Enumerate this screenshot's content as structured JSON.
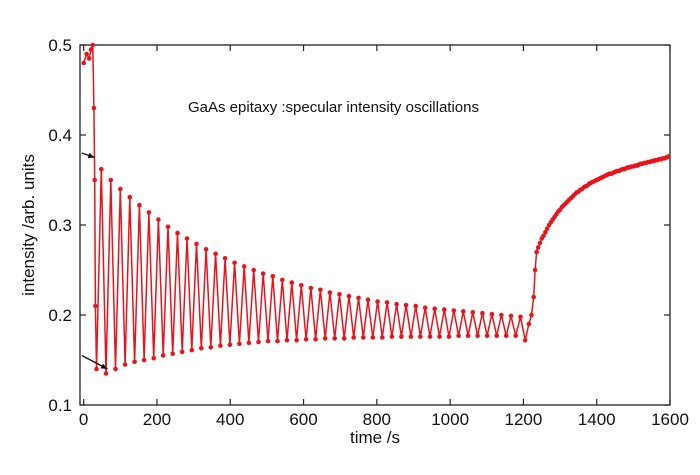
{
  "chart_data": {
    "type": "line",
    "title": "",
    "annotation": "GaAs epitaxy :specular intensity oscillations",
    "xlabel": "time /s",
    "ylabel": "intensity /arb. units",
    "xlim": [
      -10,
      1600
    ],
    "ylim": [
      0.1,
      0.5
    ],
    "x_ticks": [
      "0",
      "200",
      "400",
      "600",
      "800",
      "1000",
      "1200",
      "1400",
      "1600"
    ],
    "y_ticks": [
      "0.1",
      "0.2",
      "0.3",
      "0.4",
      "0.5"
    ],
    "grid": false,
    "legend": "none",
    "series_color": "#e8141c",
    "series": [
      {
        "x": [
          0,
          8,
          15,
          20,
          25,
          28,
          30,
          32,
          35,
          48,
          61,
          74,
          87,
          100,
          113,
          126,
          139,
          152,
          165,
          178,
          191,
          204,
          217,
          230,
          243,
          256,
          269,
          282,
          295,
          308,
          321,
          334,
          347,
          360,
          373,
          386,
          399,
          412,
          425,
          438,
          451,
          464,
          477,
          490,
          503,
          516,
          529,
          542,
          555,
          568,
          581,
          594,
          607,
          620,
          633,
          646,
          659,
          672,
          685,
          698,
          711,
          724,
          737,
          750,
          763,
          776,
          789,
          802,
          815,
          828,
          841,
          854,
          867,
          880,
          893,
          906,
          919,
          932,
          945,
          958,
          971,
          984,
          997,
          1010,
          1023,
          1036,
          1049,
          1062,
          1075,
          1088,
          1101,
          1114,
          1127,
          1140,
          1153,
          1166,
          1179,
          1192,
          1205,
          1215,
          1222,
          1228,
          1232,
          1236,
          1240,
          1245,
          1250,
          1255,
          1260,
          1265,
          1270,
          1275,
          1280,
          1285,
          1290,
          1295,
          1300,
          1305,
          1310,
          1315,
          1320,
          1325,
          1330,
          1335,
          1340,
          1345,
          1350,
          1355,
          1360,
          1365,
          1370,
          1375,
          1380,
          1385,
          1390,
          1395,
          1400,
          1405,
          1410,
          1415,
          1420,
          1425,
          1430,
          1435,
          1440,
          1445,
          1450,
          1455,
          1460,
          1465,
          1470,
          1475,
          1480,
          1485,
          1490,
          1495,
          1500,
          1505,
          1510,
          1515,
          1520,
          1525,
          1530,
          1535,
          1540,
          1545,
          1550,
          1555,
          1560,
          1565,
          1570,
          1575,
          1580,
          1585,
          1590,
          1595
        ],
        "y": [
          0.48,
          0.49,
          0.485,
          0.495,
          0.5,
          0.43,
          0.35,
          0.21,
          0.14,
          0.362,
          0.135,
          0.35,
          0.14,
          0.34,
          0.145,
          0.331,
          0.148,
          0.322,
          0.15,
          0.314,
          0.152,
          0.306,
          0.155,
          0.298,
          0.157,
          0.291,
          0.159,
          0.285,
          0.161,
          0.279,
          0.163,
          0.273,
          0.164,
          0.268,
          0.166,
          0.263,
          0.167,
          0.258,
          0.168,
          0.254,
          0.169,
          0.25,
          0.17,
          0.246,
          0.171,
          0.243,
          0.171,
          0.239,
          0.172,
          0.236,
          0.172,
          0.233,
          0.173,
          0.23,
          0.173,
          0.228,
          0.174,
          0.225,
          0.174,
          0.223,
          0.174,
          0.221,
          0.175,
          0.219,
          0.175,
          0.217,
          0.175,
          0.215,
          0.175,
          0.214,
          0.176,
          0.212,
          0.176,
          0.211,
          0.176,
          0.21,
          0.176,
          0.208,
          0.176,
          0.207,
          0.176,
          0.206,
          0.176,
          0.205,
          0.177,
          0.204,
          0.177,
          0.203,
          0.177,
          0.202,
          0.177,
          0.201,
          0.177,
          0.2,
          0.177,
          0.199,
          0.177,
          0.198,
          0.172,
          0.19,
          0.2,
          0.22,
          0.25,
          0.27,
          0.275,
          0.28,
          0.285,
          0.288,
          0.292,
          0.296,
          0.3,
          0.303,
          0.306,
          0.309,
          0.312,
          0.315,
          0.317,
          0.32,
          0.322,
          0.324,
          0.326,
          0.328,
          0.33,
          0.332,
          0.334,
          0.336,
          0.337,
          0.339,
          0.34,
          0.342,
          0.343,
          0.344,
          0.346,
          0.347,
          0.348,
          0.349,
          0.35,
          0.351,
          0.352,
          0.353,
          0.354,
          0.355,
          0.356,
          0.357,
          0.357,
          0.358,
          0.359,
          0.36,
          0.36,
          0.361,
          0.362,
          0.362,
          0.363,
          0.364,
          0.364,
          0.365,
          0.365,
          0.366,
          0.366,
          0.367,
          0.368,
          0.368,
          0.369,
          0.369,
          0.37,
          0.37,
          0.371,
          0.371,
          0.372,
          0.372,
          0.373,
          0.373,
          0.374,
          0.374,
          0.375,
          0.376
        ]
      }
    ],
    "arrows": [
      {
        "from": [
          -5,
          0.38
        ],
        "to": [
          30,
          0.375
        ]
      },
      {
        "from": [
          -5,
          0.155
        ],
        "to": [
          65,
          0.14
        ]
      }
    ]
  }
}
